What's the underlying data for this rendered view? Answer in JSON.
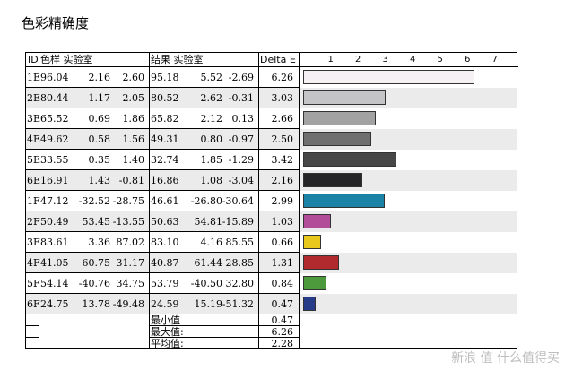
{
  "page": {
    "title": "色彩精确度"
  },
  "headers": {
    "id": "ID",
    "reference": "色样 实验室",
    "result": "结果 实验室",
    "delta": "Delta E"
  },
  "axis": {
    "ticks": [
      "1",
      "2",
      "3",
      "4",
      "5",
      "6",
      "7"
    ],
    "max": 7
  },
  "rows": [
    {
      "id": "1E",
      "ref": [
        "96.04",
        "2.16",
        "2.60"
      ],
      "res": [
        "95.18",
        "5.52",
        "-2.69"
      ],
      "de": "6.26",
      "color": "#f4f0f4"
    },
    {
      "id": "2E",
      "ref": [
        "80.44",
        "1.17",
        "2.05"
      ],
      "res": [
        "80.52",
        "2.62",
        "-0.31"
      ],
      "de": "3.03",
      "color": "#c4c4c6"
    },
    {
      "id": "3E",
      "ref": [
        "65.52",
        "0.69",
        "1.86"
      ],
      "res": [
        "65.82",
        "2.12",
        "0.13"
      ],
      "de": "2.66",
      "color": "#a2a2a2"
    },
    {
      "id": "4E",
      "ref": [
        "49.62",
        "0.58",
        "1.56"
      ],
      "res": [
        "49.31",
        "0.80",
        "-0.97"
      ],
      "de": "2.50",
      "color": "#6f6f6f"
    },
    {
      "id": "5E",
      "ref": [
        "33.55",
        "0.35",
        "1.40"
      ],
      "res": [
        "32.74",
        "1.85",
        "-1.29"
      ],
      "de": "3.42",
      "color": "#474747"
    },
    {
      "id": "6E",
      "ref": [
        "16.91",
        "1.43",
        "-0.81"
      ],
      "res": [
        "16.86",
        "1.08",
        "-3.04"
      ],
      "de": "2.16",
      "color": "#252528"
    },
    {
      "id": "1F",
      "ref": [
        "47.12",
        "-32.52",
        "-28.75"
      ],
      "res": [
        "46.61",
        "-26.80",
        "-30.64"
      ],
      "de": "2.99",
      "color": "#1b84a6"
    },
    {
      "id": "2F",
      "ref": [
        "50.49",
        "53.45",
        "-13.55"
      ],
      "res": [
        "50.63",
        "54.81",
        "-15.89"
      ],
      "de": "1.03",
      "color": "#b24d9a"
    },
    {
      "id": "3F",
      "ref": [
        "83.61",
        "3.36",
        "87.02"
      ],
      "res": [
        "83.10",
        "4.16",
        "85.55"
      ],
      "de": "0.66",
      "color": "#e9c81d"
    },
    {
      "id": "4F",
      "ref": [
        "41.05",
        "60.75",
        "31.17"
      ],
      "res": [
        "40.87",
        "61.44",
        "28.85"
      ],
      "de": "1.31",
      "color": "#b12a2e"
    },
    {
      "id": "5F",
      "ref": [
        "54.14",
        "-40.76",
        "34.75"
      ],
      "res": [
        "53.79",
        "-40.50",
        "32.80"
      ],
      "de": "0.84",
      "color": "#4c9a3c"
    },
    {
      "id": "6F",
      "ref": [
        "24.75",
        "13.78",
        "-49.48"
      ],
      "res": [
        "24.59",
        "15.19",
        "-51.32"
      ],
      "de": "0.47",
      "color": "#263c88"
    }
  ],
  "summary": [
    {
      "label": "最小值",
      "value": "0.47"
    },
    {
      "label": "最大值:",
      "value": "6.26"
    },
    {
      "label": "平均值:",
      "value": "2.28"
    }
  ],
  "watermark": "新浪 值 什么值得买"
}
